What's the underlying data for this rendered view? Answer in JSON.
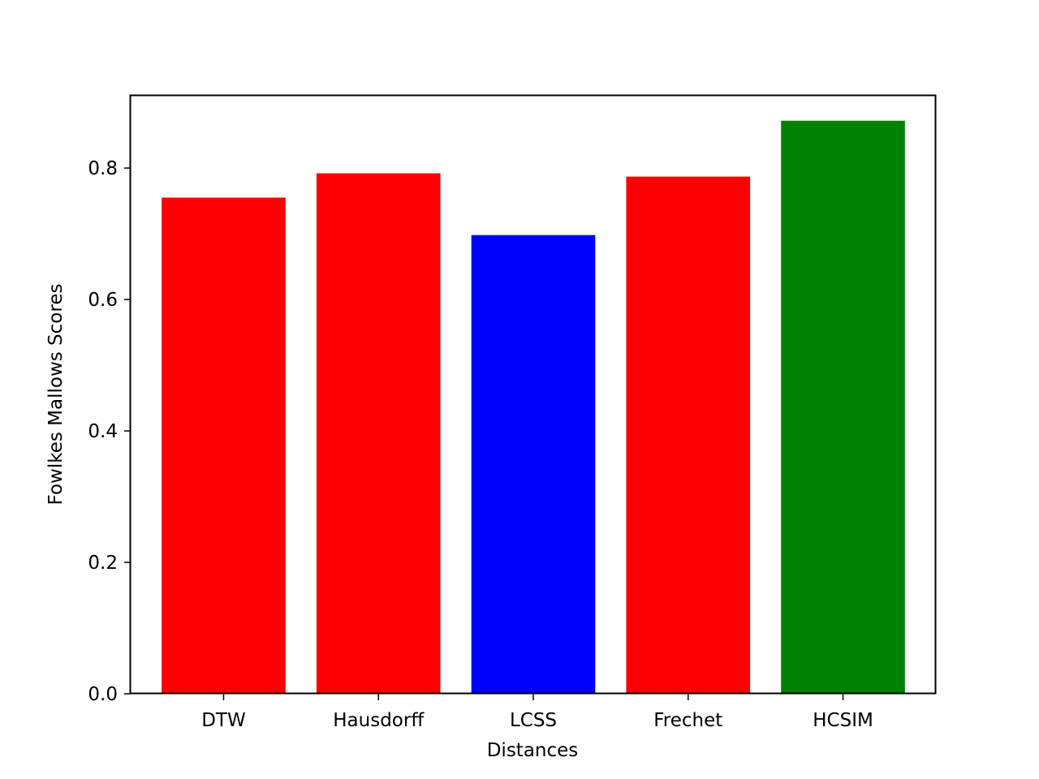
{
  "chart_data": {
    "type": "bar",
    "title": "",
    "xlabel": "Distances",
    "ylabel": "Fowlkes Mallows Scores",
    "categories": [
      "DTW",
      "Hausdorff",
      "LCSS",
      "Frechet",
      "HCSIM"
    ],
    "values": [
      0.755,
      0.792,
      0.698,
      0.787,
      0.872
    ],
    "bar_colors": [
      "#ff0000",
      "#ff0000",
      "#0000ff",
      "#ff0000",
      "#008000"
    ],
    "ylim": [
      0,
      0.91
    ],
    "yticks": [
      0.0,
      0.2,
      0.4,
      0.6,
      0.8
    ],
    "ytick_labels": [
      "0.0",
      "0.2",
      "0.4",
      "0.6",
      "0.8"
    ],
    "grid": false,
    "legend": "none"
  }
}
